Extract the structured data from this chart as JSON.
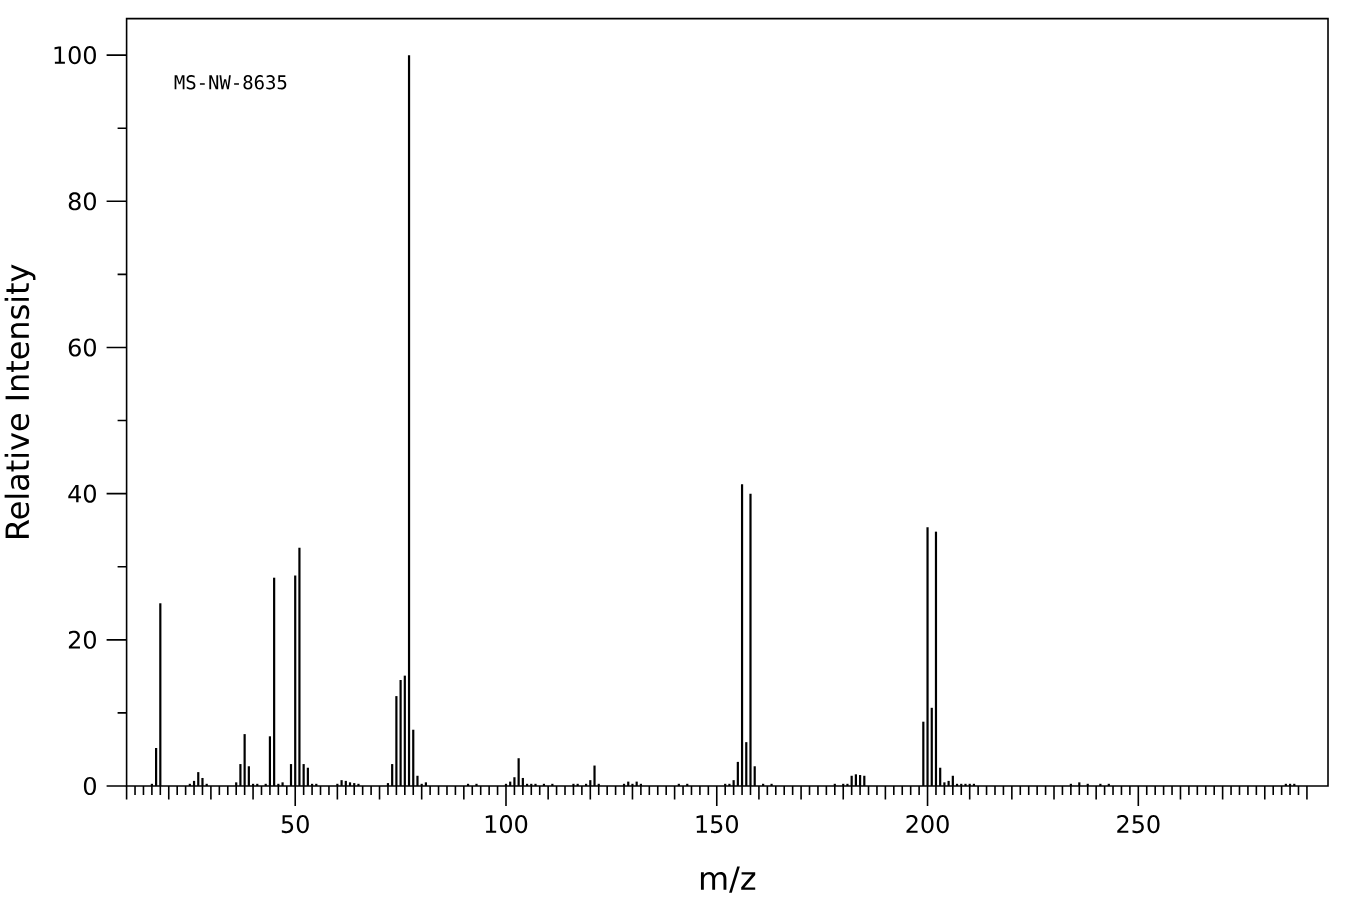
{
  "chart_data": {
    "type": "bar",
    "xlabel": "m/z",
    "ylabel": "Relative Intensity",
    "annotations": [
      "MS-NW-8635"
    ],
    "color": "#000000",
    "x": [
      16,
      17,
      18,
      25,
      26,
      27,
      28,
      29,
      36,
      37,
      38,
      39,
      40,
      41,
      43,
      44,
      45,
      46,
      47,
      49,
      50,
      51,
      52,
      53,
      54,
      55,
      60,
      61,
      62,
      63,
      64,
      65,
      72,
      73,
      74,
      75,
      76,
      77,
      78,
      79,
      80,
      81,
      91,
      93,
      100,
      101,
      102,
      103,
      104,
      105,
      106,
      107,
      109,
      111,
      116,
      117,
      119,
      120,
      121,
      122,
      128,
      129,
      130,
      131,
      132,
      141,
      143,
      152,
      153,
      154,
      155,
      156,
      157,
      158,
      159,
      161,
      163,
      178,
      180,
      181,
      182,
      183,
      184,
      185,
      199,
      200,
      201,
      202,
      203,
      204,
      205,
      206,
      207,
      208,
      209,
      210,
      211,
      234,
      236,
      238,
      241,
      243,
      285,
      286,
      287
    ],
    "values": [
      0.3,
      5.2,
      25.0,
      0.3,
      0.7,
      1.9,
      1.1,
      0.3,
      0.5,
      3.0,
      7.1,
      2.7,
      0.3,
      0.3,
      0.3,
      6.8,
      28.5,
      0.3,
      0.5,
      3.0,
      28.8,
      32.6,
      3.0,
      2.5,
      0.3,
      0.3,
      0.3,
      0.8,
      0.7,
      0.5,
      0.4,
      0.3,
      0.4,
      3.0,
      12.3,
      14.5,
      15.1,
      100,
      7.7,
      1.4,
      0.3,
      0.5,
      0.3,
      0.3,
      0.3,
      0.6,
      1.2,
      3.8,
      1.1,
      0.3,
      0.3,
      0.3,
      0.3,
      0.3,
      0.3,
      0.3,
      0.3,
      0.8,
      2.8,
      0.3,
      0.3,
      0.6,
      0.3,
      0.6,
      0.3,
      0.3,
      0.3,
      0.3,
      0.3,
      0.8,
      3.3,
      41.3,
      6.0,
      40.0,
      2.7,
      0.3,
      0.3,
      0.3,
      0.3,
      0.3,
      1.4,
      1.6,
      1.5,
      1.4,
      8.8,
      35.4,
      10.7,
      34.8,
      2.5,
      0.5,
      0.7,
      1.4,
      0.3,
      0.3,
      0.3,
      0.3,
      0.3,
      0.3,
      0.5,
      0.3,
      0.3,
      0.3,
      0.3,
      0.3,
      0.3
    ],
    "xlim": [
      10,
      295
    ],
    "ylim": [
      0,
      105
    ],
    "xticks": [
      {
        "value": 10,
        "label": null
      },
      {
        "value": 12,
        "label": null
      },
      {
        "value": 14,
        "label": null
      },
      {
        "value": 16,
        "label": null
      },
      {
        "value": 18,
        "label": null
      },
      {
        "value": 20,
        "label": null
      },
      {
        "value": 22,
        "label": null
      },
      {
        "value": 24,
        "label": null
      },
      {
        "value": 26,
        "label": null
      },
      {
        "value": 28,
        "label": null
      },
      {
        "value": 30,
        "label": null
      },
      {
        "value": 32,
        "label": null
      },
      {
        "value": 34,
        "label": null
      },
      {
        "value": 36,
        "label": null
      },
      {
        "value": 38,
        "label": null
      },
      {
        "value": 40,
        "label": null
      },
      {
        "value": 42,
        "label": null
      },
      {
        "value": 44,
        "label": null
      },
      {
        "value": 46,
        "label": null
      },
      {
        "value": 48,
        "label": null
      },
      50,
      {
        "value": 52,
        "label": null
      },
      {
        "value": 54,
        "label": null
      },
      {
        "value": 56,
        "label": null
      },
      {
        "value": 58,
        "label": null
      },
      {
        "value": 60,
        "label": null
      },
      {
        "value": 62,
        "label": null
      },
      {
        "value": 64,
        "label": null
      },
      {
        "value": 66,
        "label": null
      },
      {
        "value": 68,
        "label": null
      },
      {
        "value": 70,
        "label": null
      },
      {
        "value": 72,
        "label": null
      },
      {
        "value": 74,
        "label": null
      },
      {
        "value": 76,
        "label": null
      },
      {
        "value": 78,
        "label": null
      },
      {
        "value": 80,
        "label": null
      },
      {
        "value": 82,
        "label": null
      },
      {
        "value": 84,
        "label": null
      },
      {
        "value": 86,
        "label": null
      },
      {
        "value": 88,
        "label": null
      },
      {
        "value": 90,
        "label": null
      },
      {
        "value": 92,
        "label": null
      },
      {
        "value": 94,
        "label": null
      },
      {
        "value": 96,
        "label": null
      },
      {
        "value": 98,
        "label": null
      },
      100,
      {
        "value": 102,
        "label": null
      },
      {
        "value": 104,
        "label": null
      },
      {
        "value": 106,
        "label": null
      },
      {
        "value": 108,
        "label": null
      },
      {
        "value": 110,
        "label": null
      },
      {
        "value": 112,
        "label": null
      },
      {
        "value": 114,
        "label": null
      },
      {
        "value": 116,
        "label": null
      },
      {
        "value": 118,
        "label": null
      },
      {
        "value": 120,
        "label": null
      },
      {
        "value": 122,
        "label": null
      },
      {
        "value": 124,
        "label": null
      },
      {
        "value": 126,
        "label": null
      },
      {
        "value": 128,
        "label": null
      },
      {
        "value": 130,
        "label": null
      },
      {
        "value": 132,
        "label": null
      },
      {
        "value": 134,
        "label": null
      },
      {
        "value": 136,
        "label": null
      },
      {
        "value": 138,
        "label": null
      },
      {
        "value": 140,
        "label": null
      },
      {
        "value": 142,
        "label": null
      },
      {
        "value": 144,
        "label": null
      },
      {
        "value": 146,
        "label": null
      },
      {
        "value": 148,
        "label": null
      },
      150,
      {
        "value": 152,
        "label": null
      },
      {
        "value": 154,
        "label": null
      },
      {
        "value": 156,
        "label": null
      },
      {
        "value": 158,
        "label": null
      },
      {
        "value": 160,
        "label": null
      },
      {
        "value": 162,
        "label": null
      },
      {
        "value": 164,
        "label": null
      },
      {
        "value": 166,
        "label": null
      },
      {
        "value": 168,
        "label": null
      },
      {
        "value": 170,
        "label": null
      },
      {
        "value": 172,
        "label": null
      },
      {
        "value": 174,
        "label": null
      },
      {
        "value": 176,
        "label": null
      },
      {
        "value": 178,
        "label": null
      },
      {
        "value": 180,
        "label": null
      },
      {
        "value": 182,
        "label": null
      },
      {
        "value": 184,
        "label": null
      },
      {
        "value": 186,
        "label": null
      },
      {
        "value": 188,
        "label": null
      },
      {
        "value": 190,
        "label": null
      },
      {
        "value": 192,
        "label": null
      },
      {
        "value": 194,
        "label": null
      },
      {
        "value": 196,
        "label": null
      },
      {
        "value": 198,
        "label": null
      },
      200,
      {
        "value": 202,
        "label": null
      },
      {
        "value": 204,
        "label": null
      },
      {
        "value": 206,
        "label": null
      },
      {
        "value": 208,
        "label": null
      },
      {
        "value": 210,
        "label": null
      },
      {
        "value": 212,
        "label": null
      },
      {
        "value": 214,
        "label": null
      },
      {
        "value": 216,
        "label": null
      },
      {
        "value": 218,
        "label": null
      },
      {
        "value": 220,
        "label": null
      },
      {
        "value": 222,
        "label": null
      },
      {
        "value": 224,
        "label": null
      },
      {
        "value": 226,
        "label": null
      },
      {
        "value": 228,
        "label": null
      },
      {
        "value": 230,
        "label": null
      },
      {
        "value": 232,
        "label": null
      },
      {
        "value": 234,
        "label": null
      },
      {
        "value": 236,
        "label": null
      },
      {
        "value": 238,
        "label": null
      },
      {
        "value": 240,
        "label": null
      },
      {
        "value": 242,
        "label": null
      },
      {
        "value": 244,
        "label": null
      },
      {
        "value": 246,
        "label": null
      },
      {
        "value": 248,
        "label": null
      },
      250,
      {
        "value": 252,
        "label": null
      },
      {
        "value": 254,
        "label": null
      },
      {
        "value": 256,
        "label": null
      },
      {
        "value": 258,
        "label": null
      },
      {
        "value": 260,
        "label": null
      },
      {
        "value": 262,
        "label": null
      },
      {
        "value": 264,
        "label": null
      },
      {
        "value": 266,
        "label": null
      },
      {
        "value": 268,
        "label": null
      },
      {
        "value": 270,
        "label": null
      },
      {
        "value": 272,
        "label": null
      },
      {
        "value": 274,
        "label": null
      },
      {
        "value": 276,
        "label": null
      },
      {
        "value": 278,
        "label": null
      },
      {
        "value": 280,
        "label": null
      },
      {
        "value": 282,
        "label": null
      },
      {
        "value": 284,
        "label": null
      },
      {
        "value": 286,
        "label": null
      },
      {
        "value": 288,
        "label": null
      },
      {
        "value": 290,
        "label": null
      }
    ],
    "yticks": [
      0,
      {
        "value": 10,
        "label": null
      },
      20,
      {
        "value": 30,
        "label": null
      },
      40,
      {
        "value": 50,
        "label": null
      },
      60,
      {
        "value": 70,
        "label": null
      },
      80,
      {
        "value": 90,
        "label": null
      },
      100
    ]
  }
}
